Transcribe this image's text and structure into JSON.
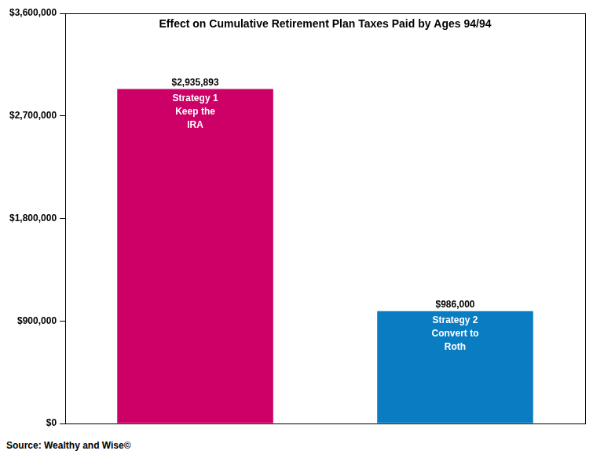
{
  "chart_data": {
    "type": "bar",
    "title": "Effect on Cumulative Retirement Plan Taxes Paid by Ages 94/94",
    "categories": [
      [
        "Strategy 1",
        "Keep the",
        "IRA"
      ],
      [
        "Strategy 2",
        "Convert to",
        "Roth"
      ]
    ],
    "values": [
      2935893,
      986000
    ],
    "value_labels": [
      "$2,935,893",
      "$986,000"
    ],
    "colors": [
      "#cc0066",
      "#0a7dc2"
    ],
    "ylim": [
      0,
      3600000
    ],
    "yticks": [
      {
        "value": 0,
        "label": "$0"
      },
      {
        "value": 900000,
        "label": "$900,000"
      },
      {
        "value": 1800000,
        "label": "$1,800,000"
      },
      {
        "value": 2700000,
        "label": "$2,700,000"
      },
      {
        "value": 3600000,
        "label": "$3,600,000"
      }
    ],
    "grid": false,
    "data_labels": true,
    "tick_labels": "y",
    "source": "Source: Wealthy and Wise©"
  }
}
